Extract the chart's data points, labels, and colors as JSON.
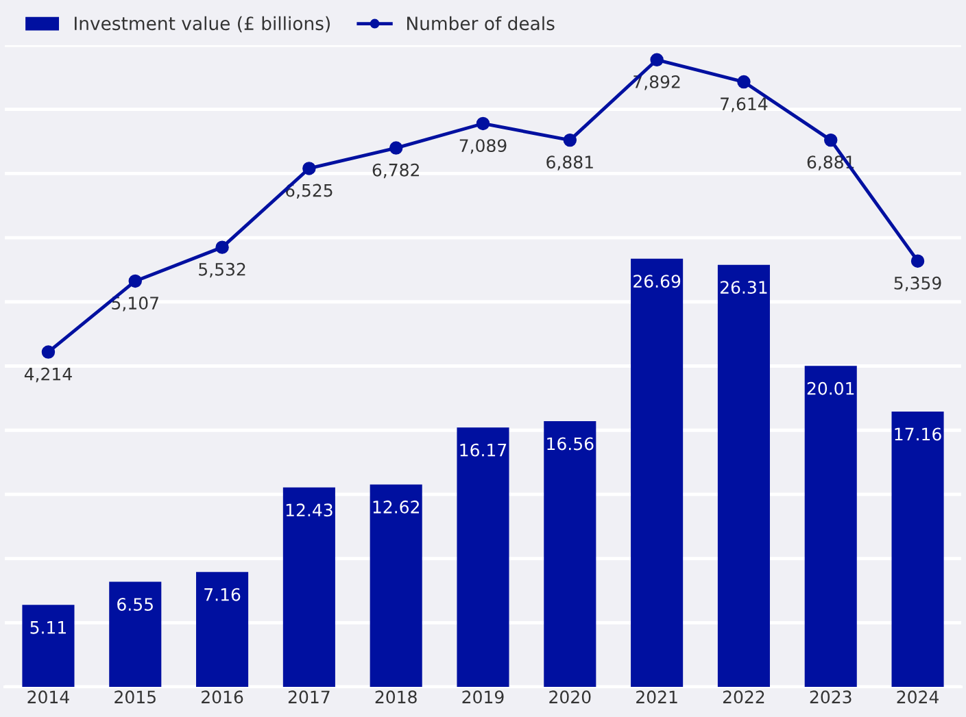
{
  "chart_data": {
    "type": "bar",
    "categories": [
      "2014",
      "2015",
      "2016",
      "2017",
      "2018",
      "2019",
      "2020",
      "2021",
      "2022",
      "2023",
      "2024"
    ],
    "series": [
      {
        "name": "Investment value (£ billions)",
        "color": "#0010a0",
        "values": [
          5.11,
          6.55,
          7.16,
          12.43,
          12.62,
          16.17,
          16.56,
          26.69,
          26.31,
          20.01,
          17.16
        ]
      },
      {
        "name": "Number of deals",
        "type": "line",
        "axis": "y2",
        "color": "#0010a0",
        "marker": "circle",
        "values": [
          4214,
          5107,
          5532,
          6525,
          6782,
          7089,
          6881,
          7892,
          7614,
          6881,
          5359
        ],
        "value_labels": [
          "4,214",
          "5,107",
          "5,532",
          "6,525",
          "6,782",
          "7,089",
          "6,881",
          "7,892",
          "7,614",
          "6,881",
          "5,359"
        ]
      }
    ],
    "ylim": [
      0,
      40
    ],
    "yticks": [
      {
        "value": 0,
        "label": null
      },
      {
        "value": 4,
        "label": null
      },
      {
        "value": 8,
        "label": null
      },
      {
        "value": 12,
        "label": null
      },
      {
        "value": 16,
        "label": null
      },
      {
        "value": 20,
        "label": null
      },
      {
        "value": 24,
        "label": null
      },
      {
        "value": 28,
        "label": null
      },
      {
        "value": 32,
        "label": null
      },
      {
        "value": 36,
        "label": null
      },
      {
        "value": 40,
        "label": null
      }
    ],
    "tick_labels": "x",
    "data_labels": true,
    "grid": "y",
    "legend": "top left"
  }
}
